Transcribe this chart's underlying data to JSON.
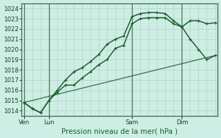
{
  "title": "",
  "xlabel": "Pression niveau de la mer( hPa )",
  "bg_color": "#cceee4",
  "grid_color": "#b8d4cc",
  "vline_color": "#4a6e5a",
  "line_color": "#1a5c2a",
  "ylim": [
    1013.5,
    1024.5
  ],
  "yticks": [
    1014,
    1015,
    1016,
    1017,
    1018,
    1019,
    1020,
    1021,
    1022,
    1023,
    1024
  ],
  "xlim": [
    -0.3,
    23.3
  ],
  "xtick_positions": [
    0,
    3,
    13,
    19
  ],
  "xtick_labels": [
    "Ven",
    "Lun",
    "Sam",
    "Dim"
  ],
  "vlines": [
    0,
    3,
    13,
    19
  ],
  "line1_x": [
    0,
    1,
    2,
    3,
    4,
    5,
    6,
    7,
    8,
    9,
    10,
    11,
    12,
    13,
    14,
    15,
    16,
    17,
    18,
    19,
    20,
    21,
    22,
    23
  ],
  "line1_y": [
    1014.8,
    1014.2,
    1013.8,
    1015.0,
    1015.8,
    1016.5,
    1016.5,
    1017.2,
    1017.8,
    1018.5,
    1019.0,
    1020.1,
    1020.4,
    1022.5,
    1023.0,
    1023.1,
    1023.1,
    1023.1,
    1022.5,
    1022.2,
    1021.0,
    1020.0,
    1019.0,
    1019.4
  ],
  "line2_x": [
    0,
    1,
    2,
    3,
    4,
    5,
    6,
    7,
    8,
    9,
    10,
    11,
    12,
    13,
    14,
    15,
    16,
    17,
    18,
    19,
    20,
    21,
    22,
    23
  ],
  "line2_y": [
    1014.8,
    1014.2,
    1013.8,
    1015.0,
    1016.0,
    1017.0,
    1017.8,
    1018.2,
    1018.8,
    1019.5,
    1020.5,
    1021.0,
    1021.3,
    1023.2,
    1023.5,
    1023.6,
    1023.6,
    1023.5,
    1022.8,
    1022.2,
    1022.8,
    1022.8,
    1022.5,
    1022.6
  ],
  "line3_x": [
    0,
    23
  ],
  "line3_y": [
    1014.8,
    1019.4
  ],
  "marker_size": 3.5,
  "linewidth": 1.1,
  "tick_fontsize": 6.2,
  "xlabel_fontsize": 7.5
}
